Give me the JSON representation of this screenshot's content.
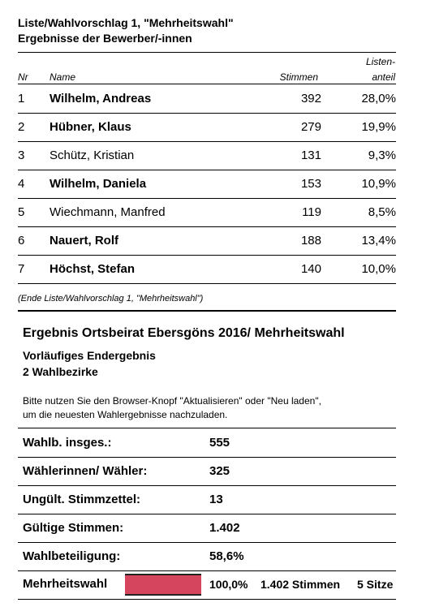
{
  "list_section": {
    "title": "Liste/Wahlvorschlag 1, \"Mehrheitswahl\"",
    "subtitle": "Ergebnisse der Bewerber/-innen",
    "columns": {
      "nr": "Nr",
      "name": "Name",
      "votes": "Stimmen",
      "share": [
        "Listen-",
        "anteil"
      ]
    },
    "rows": [
      {
        "nr": "1",
        "name": "Wilhelm, Andreas",
        "votes": "392",
        "share": "28,0%",
        "bold": true
      },
      {
        "nr": "2",
        "name": "Hübner, Klaus",
        "votes": "279",
        "share": "19,9%",
        "bold": true
      },
      {
        "nr": "3",
        "name": "Schütz, Kristian",
        "votes": "131",
        "share": "9,3%",
        "bold": false
      },
      {
        "nr": "4",
        "name": "Wilhelm, Daniela",
        "votes": "153",
        "share": "10,9%",
        "bold": true
      },
      {
        "nr": "5",
        "name": "Wiechmann, Manfred",
        "votes": "119",
        "share": "8,5%",
        "bold": false
      },
      {
        "nr": "6",
        "name": "Nauert, Rolf",
        "votes": "188",
        "share": "13,4%",
        "bold": true
      },
      {
        "nr": "7",
        "name": "Höchst, Stefan",
        "votes": "140",
        "share": "10,0%",
        "bold": true
      }
    ],
    "footnote": "(Ende Liste/Wahlvorschlag 1, \"Mehrheitswahl\")"
  },
  "result_section": {
    "title": "Ergebnis Ortsbeirat Ebersgöns 2016/ Mehrheitswahl",
    "status": "Vorläufiges Endergebnis",
    "districts": "2 Wahlbezirke",
    "notice": [
      "Bitte nutzen Sie den Browser-Knopf \"Aktualisieren\" oder \"Neu laden\",",
      "um die neuesten Wahlergebnisse nachzuladen."
    ],
    "rows": [
      {
        "label": "Wahlb. insges.:",
        "value": "555"
      },
      {
        "label": "Wählerinnen/ Wähler:",
        "value": "325"
      },
      {
        "label": "Ungült. Stimmzettel:",
        "value": "13"
      },
      {
        "label": "Gültige Stimmen:",
        "value": "1.402"
      },
      {
        "label": "Wahlbeteiligung:",
        "value": "58,6%"
      }
    ],
    "winner": {
      "label": "Mehrheitswahl",
      "share": {
        "value": 100,
        "label": "100,0%"
      },
      "votes": "1.402 Stimmen",
      "seats": "5 Sitze",
      "color": "#d5455e"
    }
  }
}
